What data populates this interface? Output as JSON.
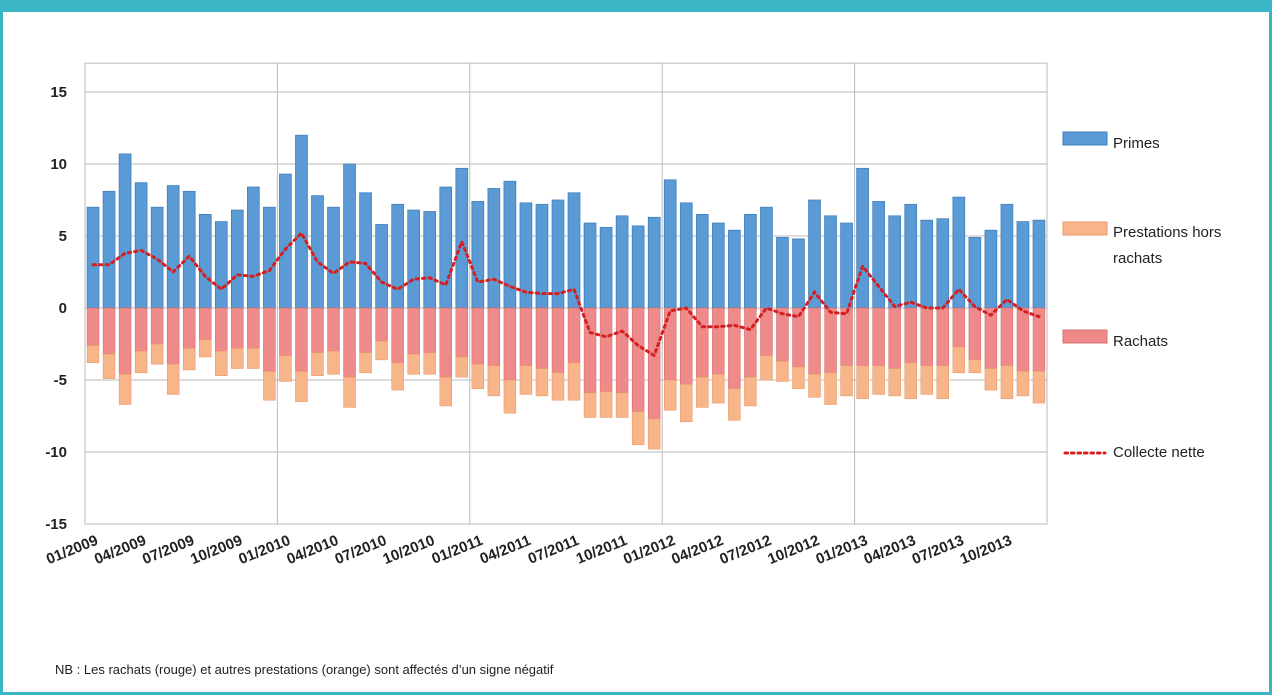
{
  "chart_data": {
    "type": "bar",
    "note": "NB : Les rachats (rouge) et autres prestations (orange) sont affectés d’un signe négatif",
    "categories": [
      "01/2009",
      null,
      null,
      "04/2009",
      null,
      null,
      "07/2009",
      null,
      null,
      "10/2009",
      null,
      null,
      "01/2010",
      null,
      null,
      "04/2010",
      null,
      null,
      "07/2010",
      null,
      null,
      "10/2010",
      null,
      null,
      "01/2011",
      null,
      null,
      "04/2011",
      null,
      null,
      "07/2011",
      null,
      null,
      "10/2011",
      null,
      null,
      "01/2012",
      null,
      null,
      "04/2012",
      null,
      null,
      "07/2012",
      null,
      null,
      "10/2012",
      null,
      null,
      "01/2013",
      null,
      null,
      "04/2013",
      null,
      null,
      "07/2013",
      null,
      null,
      "10/2013",
      null,
      null
    ],
    "series": [
      {
        "name": "Primes",
        "color": "#5b9bd5",
        "values": [
          7.0,
          8.1,
          10.7,
          8.7,
          7.0,
          8.5,
          8.1,
          6.5,
          6.0,
          6.8,
          8.4,
          7.0,
          9.3,
          12.0,
          7.8,
          7.0,
          10.0,
          8.0,
          5.8,
          7.2,
          6.8,
          6.7,
          8.4,
          9.7,
          7.4,
          8.3,
          8.8,
          7.3,
          7.2,
          7.5,
          8.0,
          5.9,
          5.6,
          6.4,
          5.7,
          6.3,
          8.9,
          7.3,
          6.5,
          5.9,
          5.4,
          6.5,
          7.0,
          4.9,
          4.8,
          7.5,
          6.4,
          5.9,
          9.7,
          7.4,
          6.4,
          7.2,
          6.1,
          6.2,
          7.7,
          4.9,
          5.4,
          7.2,
          6.0,
          6.1
        ]
      },
      {
        "name": "Prestations hors rachats",
        "color": "#f9b58a",
        "values": [
          -1.2,
          -1.7,
          -2.1,
          -1.5,
          -1.4,
          -2.1,
          -1.5,
          -1.2,
          -1.7,
          -1.4,
          -1.4,
          -2.0,
          -1.8,
          -2.1,
          -1.6,
          -1.6,
          -2.1,
          -1.4,
          -1.3,
          -1.9,
          -1.4,
          -1.5,
          -2.0,
          -1.4,
          -1.7,
          -2.1,
          -2.3,
          -2.0,
          -1.9,
          -1.9,
          -2.6,
          -1.7,
          -1.8,
          -1.7,
          -2.3,
          -2.1,
          -2.1,
          -2.6,
          -2.1,
          -2.0,
          -2.2,
          -2.0,
          -1.7,
          -1.4,
          -1.5,
          -1.6,
          -2.2,
          -2.1,
          -2.3,
          -2.0,
          -1.9,
          -2.5,
          -2.0,
          -2.3,
          -1.8,
          -0.9,
          -1.5,
          -2.3,
          -1.7,
          -2.2
        ]
      },
      {
        "name": "Rachats",
        "color": "#ee8a8a",
        "values": [
          -2.6,
          -3.2,
          -4.6,
          -3.0,
          -2.5,
          -3.9,
          -2.8,
          -2.2,
          -3.0,
          -2.8,
          -2.8,
          -4.4,
          -3.3,
          -4.4,
          -3.1,
          -3.0,
          -4.8,
          -3.1,
          -2.3,
          -3.8,
          -3.2,
          -3.1,
          -4.8,
          -3.4,
          -3.9,
          -4.0,
          -5.0,
          -4.0,
          -4.2,
          -4.5,
          -3.8,
          -5.9,
          -5.8,
          -5.9,
          -7.2,
          -7.7,
          -5.0,
          -5.3,
          -4.8,
          -4.6,
          -5.6,
          -4.8,
          -3.3,
          -3.7,
          -4.1,
          -4.6,
          -4.5,
          -4.0,
          -4.0,
          -4.0,
          -4.2,
          -3.8,
          -4.0,
          -4.0,
          -2.7,
          -3.6,
          -4.2,
          -4.0,
          -4.4,
          -4.4
        ]
      },
      {
        "name": "Collecte nette",
        "color": "#d42020",
        "values": [
          3.0,
          3.0,
          3.8,
          4.0,
          3.4,
          2.5,
          3.6,
          2.2,
          1.3,
          2.3,
          2.2,
          2.6,
          4.1,
          5.2,
          3.2,
          2.4,
          3.2,
          3.1,
          1.8,
          1.3,
          2.0,
          2.1,
          1.6,
          4.6,
          1.8,
          2.0,
          1.5,
          1.1,
          1.0,
          1.0,
          1.3,
          -1.7,
          -2.0,
          -1.6,
          -2.6,
          -3.3,
          -0.2,
          0.0,
          -1.3,
          -1.3,
          -1.2,
          -1.5,
          0.0,
          -0.4,
          -0.6,
          1.1,
          -0.3,
          -0.4,
          2.9,
          1.5,
          0.1,
          0.4,
          0.0,
          0.0,
          1.3,
          0.1,
          -0.5,
          0.6,
          -0.2,
          -0.6
        ]
      }
    ],
    "ylim": [
      -15,
      17
    ],
    "yticks": [
      -15,
      -10,
      -5,
      0,
      5,
      10,
      15
    ],
    "grid": true
  }
}
